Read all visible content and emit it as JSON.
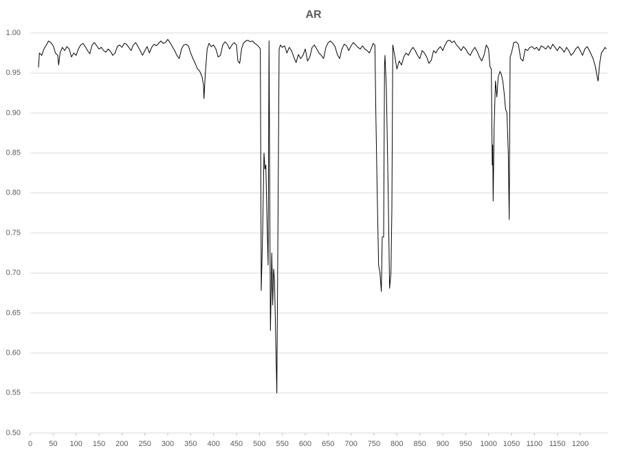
{
  "chart_data": {
    "type": "line",
    "title": "AR",
    "x": [
      18,
      20,
      25,
      30,
      35,
      40,
      45,
      50,
      55,
      60,
      62,
      65,
      70,
      75,
      80,
      85,
      90,
      95,
      100,
      105,
      110,
      115,
      120,
      125,
      130,
      135,
      140,
      145,
      150,
      155,
      160,
      165,
      170,
      175,
      180,
      185,
      190,
      195,
      200,
      205,
      210,
      215,
      220,
      225,
      230,
      235,
      240,
      245,
      250,
      255,
      260,
      265,
      270,
      275,
      280,
      285,
      290,
      295,
      300,
      305,
      310,
      315,
      320,
      325,
      330,
      335,
      340,
      345,
      350,
      355,
      360,
      365,
      370,
      375,
      378,
      379,
      382,
      386,
      390,
      395,
      400,
      405,
      410,
      415,
      420,
      425,
      430,
      435,
      440,
      445,
      450,
      453,
      457,
      461,
      465,
      470,
      475,
      480,
      485,
      490,
      495,
      500,
      502,
      504,
      507,
      510,
      512,
      514,
      516,
      519,
      521,
      524,
      526,
      527,
      529,
      531,
      533,
      538,
      543,
      546,
      550,
      555,
      560,
      565,
      570,
      575,
      580,
      585,
      590,
      595,
      600,
      605,
      610,
      615,
      620,
      625,
      630,
      635,
      640,
      645,
      650,
      655,
      660,
      665,
      670,
      675,
      680,
      685,
      690,
      695,
      700,
      705,
      710,
      715,
      720,
      725,
      730,
      735,
      740,
      745,
      748,
      752,
      754,
      757,
      760,
      763,
      766,
      768,
      771,
      773,
      774,
      777,
      781,
      784,
      787,
      789,
      791,
      795,
      800,
      805,
      810,
      815,
      820,
      825,
      830,
      835,
      840,
      845,
      850,
      855,
      860,
      865,
      870,
      875,
      880,
      885,
      890,
      895,
      900,
      905,
      910,
      915,
      920,
      925,
      930,
      935,
      940,
      945,
      950,
      955,
      960,
      965,
      970,
      975,
      980,
      985,
      990,
      995,
      1000,
      1003,
      1006,
      1008,
      1009,
      1010,
      1012,
      1015,
      1018,
      1021,
      1025,
      1028,
      1031,
      1034,
      1037,
      1040,
      1043,
      1045,
      1047,
      1050,
      1055,
      1060,
      1065,
      1070,
      1075,
      1080,
      1085,
      1090,
      1095,
      1100,
      1105,
      1110,
      1115,
      1120,
      1125,
      1130,
      1135,
      1140,
      1145,
      1150,
      1155,
      1160,
      1165,
      1170,
      1175,
      1180,
      1185,
      1190,
      1195,
      1200,
      1205,
      1210,
      1215,
      1220,
      1228,
      1233,
      1237,
      1239,
      1242,
      1246,
      1250,
      1254,
      1257
    ],
    "series": [
      {
        "color": "#000000",
        "values": [
          0.957,
          0.975,
          0.972,
          0.98,
          0.985,
          0.99,
          0.988,
          0.984,
          0.975,
          0.972,
          0.96,
          0.975,
          0.982,
          0.978,
          0.983,
          0.98,
          0.97,
          0.975,
          0.972,
          0.98,
          0.985,
          0.987,
          0.983,
          0.978,
          0.974,
          0.985,
          0.988,
          0.984,
          0.98,
          0.982,
          0.978,
          0.976,
          0.98,
          0.977,
          0.972,
          0.975,
          0.983,
          0.985,
          0.982,
          0.987,
          0.986,
          0.982,
          0.978,
          0.985,
          0.988,
          0.983,
          0.978,
          0.972,
          0.978,
          0.983,
          0.975,
          0.982,
          0.986,
          0.984,
          0.987,
          0.99,
          0.987,
          0.988,
          0.992,
          0.988,
          0.983,
          0.978,
          0.972,
          0.968,
          0.98,
          0.985,
          0.986,
          0.984,
          0.975,
          0.968,
          0.962,
          0.955,
          0.952,
          0.945,
          0.935,
          0.918,
          0.95,
          0.98,
          0.987,
          0.983,
          0.985,
          0.98,
          0.97,
          0.972,
          0.985,
          0.989,
          0.986,
          0.98,
          0.985,
          0.988,
          0.985,
          0.965,
          0.962,
          0.98,
          0.987,
          0.99,
          0.991,
          0.989,
          0.99,
          0.987,
          0.985,
          0.982,
          0.98,
          0.678,
          0.75,
          0.85,
          0.83,
          0.835,
          0.78,
          0.71,
          0.99,
          0.628,
          0.69,
          0.725,
          0.66,
          0.705,
          0.69,
          0.55,
          0.98,
          0.985,
          0.982,
          0.984,
          0.975,
          0.982,
          0.978,
          0.97,
          0.963,
          0.973,
          0.968,
          0.972,
          0.98,
          0.965,
          0.97,
          0.982,
          0.985,
          0.98,
          0.975,
          0.972,
          0.968,
          0.982,
          0.988,
          0.99,
          0.987,
          0.983,
          0.973,
          0.968,
          0.98,
          0.986,
          0.984,
          0.978,
          0.984,
          0.988,
          0.985,
          0.982,
          0.98,
          0.984,
          0.98,
          0.978,
          0.975,
          0.982,
          0.987,
          0.985,
          0.9,
          0.8,
          0.71,
          0.7,
          0.677,
          0.745,
          0.745,
          0.96,
          0.972,
          0.93,
          0.8,
          0.681,
          0.7,
          0.78,
          0.985,
          0.972,
          0.955,
          0.965,
          0.96,
          0.97,
          0.975,
          0.972,
          0.978,
          0.982,
          0.978,
          0.972,
          0.968,
          0.978,
          0.975,
          0.97,
          0.962,
          0.966,
          0.978,
          0.975,
          0.98,
          0.983,
          0.978,
          0.985,
          0.99,
          0.991,
          0.988,
          0.99,
          0.985,
          0.982,
          0.978,
          0.983,
          0.98,
          0.975,
          0.972,
          0.978,
          0.982,
          0.977,
          0.97,
          0.965,
          0.972,
          0.985,
          0.98,
          0.958,
          0.955,
          0.835,
          0.86,
          0.79,
          0.88,
          0.94,
          0.92,
          0.945,
          0.952,
          0.948,
          0.94,
          0.925,
          0.905,
          0.9,
          0.85,
          0.767,
          0.97,
          0.975,
          0.988,
          0.989,
          0.986,
          0.968,
          0.965,
          0.98,
          0.978,
          0.982,
          0.983,
          0.98,
          0.982,
          0.978,
          0.984,
          0.982,
          0.98,
          0.984,
          0.98,
          0.986,
          0.982,
          0.978,
          0.983,
          0.98,
          0.976,
          0.982,
          0.978,
          0.972,
          0.975,
          0.98,
          0.983,
          0.978,
          0.972,
          0.98,
          0.983,
          0.978,
          0.968,
          0.958,
          0.945,
          0.94,
          0.96,
          0.975,
          0.978,
          0.982,
          0.98
        ]
      }
    ],
    "xlim": [
      0,
      1260
    ],
    "xticks": [
      0,
      50,
      100,
      150,
      200,
      250,
      300,
      350,
      400,
      450,
      500,
      550,
      600,
      650,
      700,
      750,
      800,
      850,
      900,
      950,
      1000,
      1050,
      1100,
      1150,
      1200
    ],
    "ylim": [
      0.5,
      1.0
    ],
    "yticks": [
      {
        "value": 0.5,
        "label": "0.50"
      },
      {
        "value": 0.55,
        "label": "0.55"
      },
      {
        "value": 0.6,
        "label": "0.60"
      },
      {
        "value": 0.65,
        "label": "0.65"
      },
      {
        "value": 0.7,
        "label": "0.70"
      },
      {
        "value": 0.75,
        "label": "0.75"
      },
      {
        "value": 0.8,
        "label": "0.80"
      },
      {
        "value": 0.85,
        "label": "0.85"
      },
      {
        "value": 0.9,
        "label": "0.90"
      },
      {
        "value": 0.95,
        "label": "0.95"
      },
      {
        "value": 1.0,
        "label": "1.00"
      }
    ],
    "grid": true
  }
}
